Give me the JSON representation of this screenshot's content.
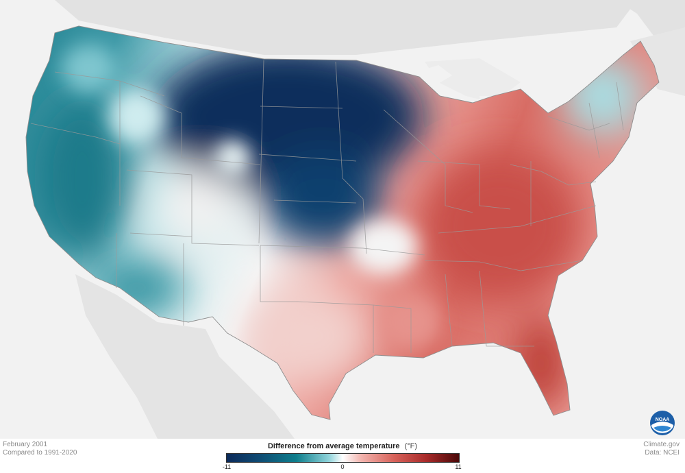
{
  "map": {
    "date_label": "February 2001",
    "comparison_label": "Compared to 1991-2020",
    "source_site": "Climate.gov",
    "source_data": "Data: NCEI",
    "logo_text": "NOAA",
    "colors": {
      "background": "#f2f2f2",
      "land_outside": "#e0e0e0",
      "coldest": "#0c2a5a",
      "cold": "#0e7e8c",
      "neutral": "#ffffff",
      "warm": "#d7625a",
      "warmest": "#4a0808"
    }
  },
  "legend": {
    "title": "Difference from average temperature",
    "unit": "(°F)",
    "min_label": "-11",
    "mid_label": "0",
    "max_label": "11"
  }
}
